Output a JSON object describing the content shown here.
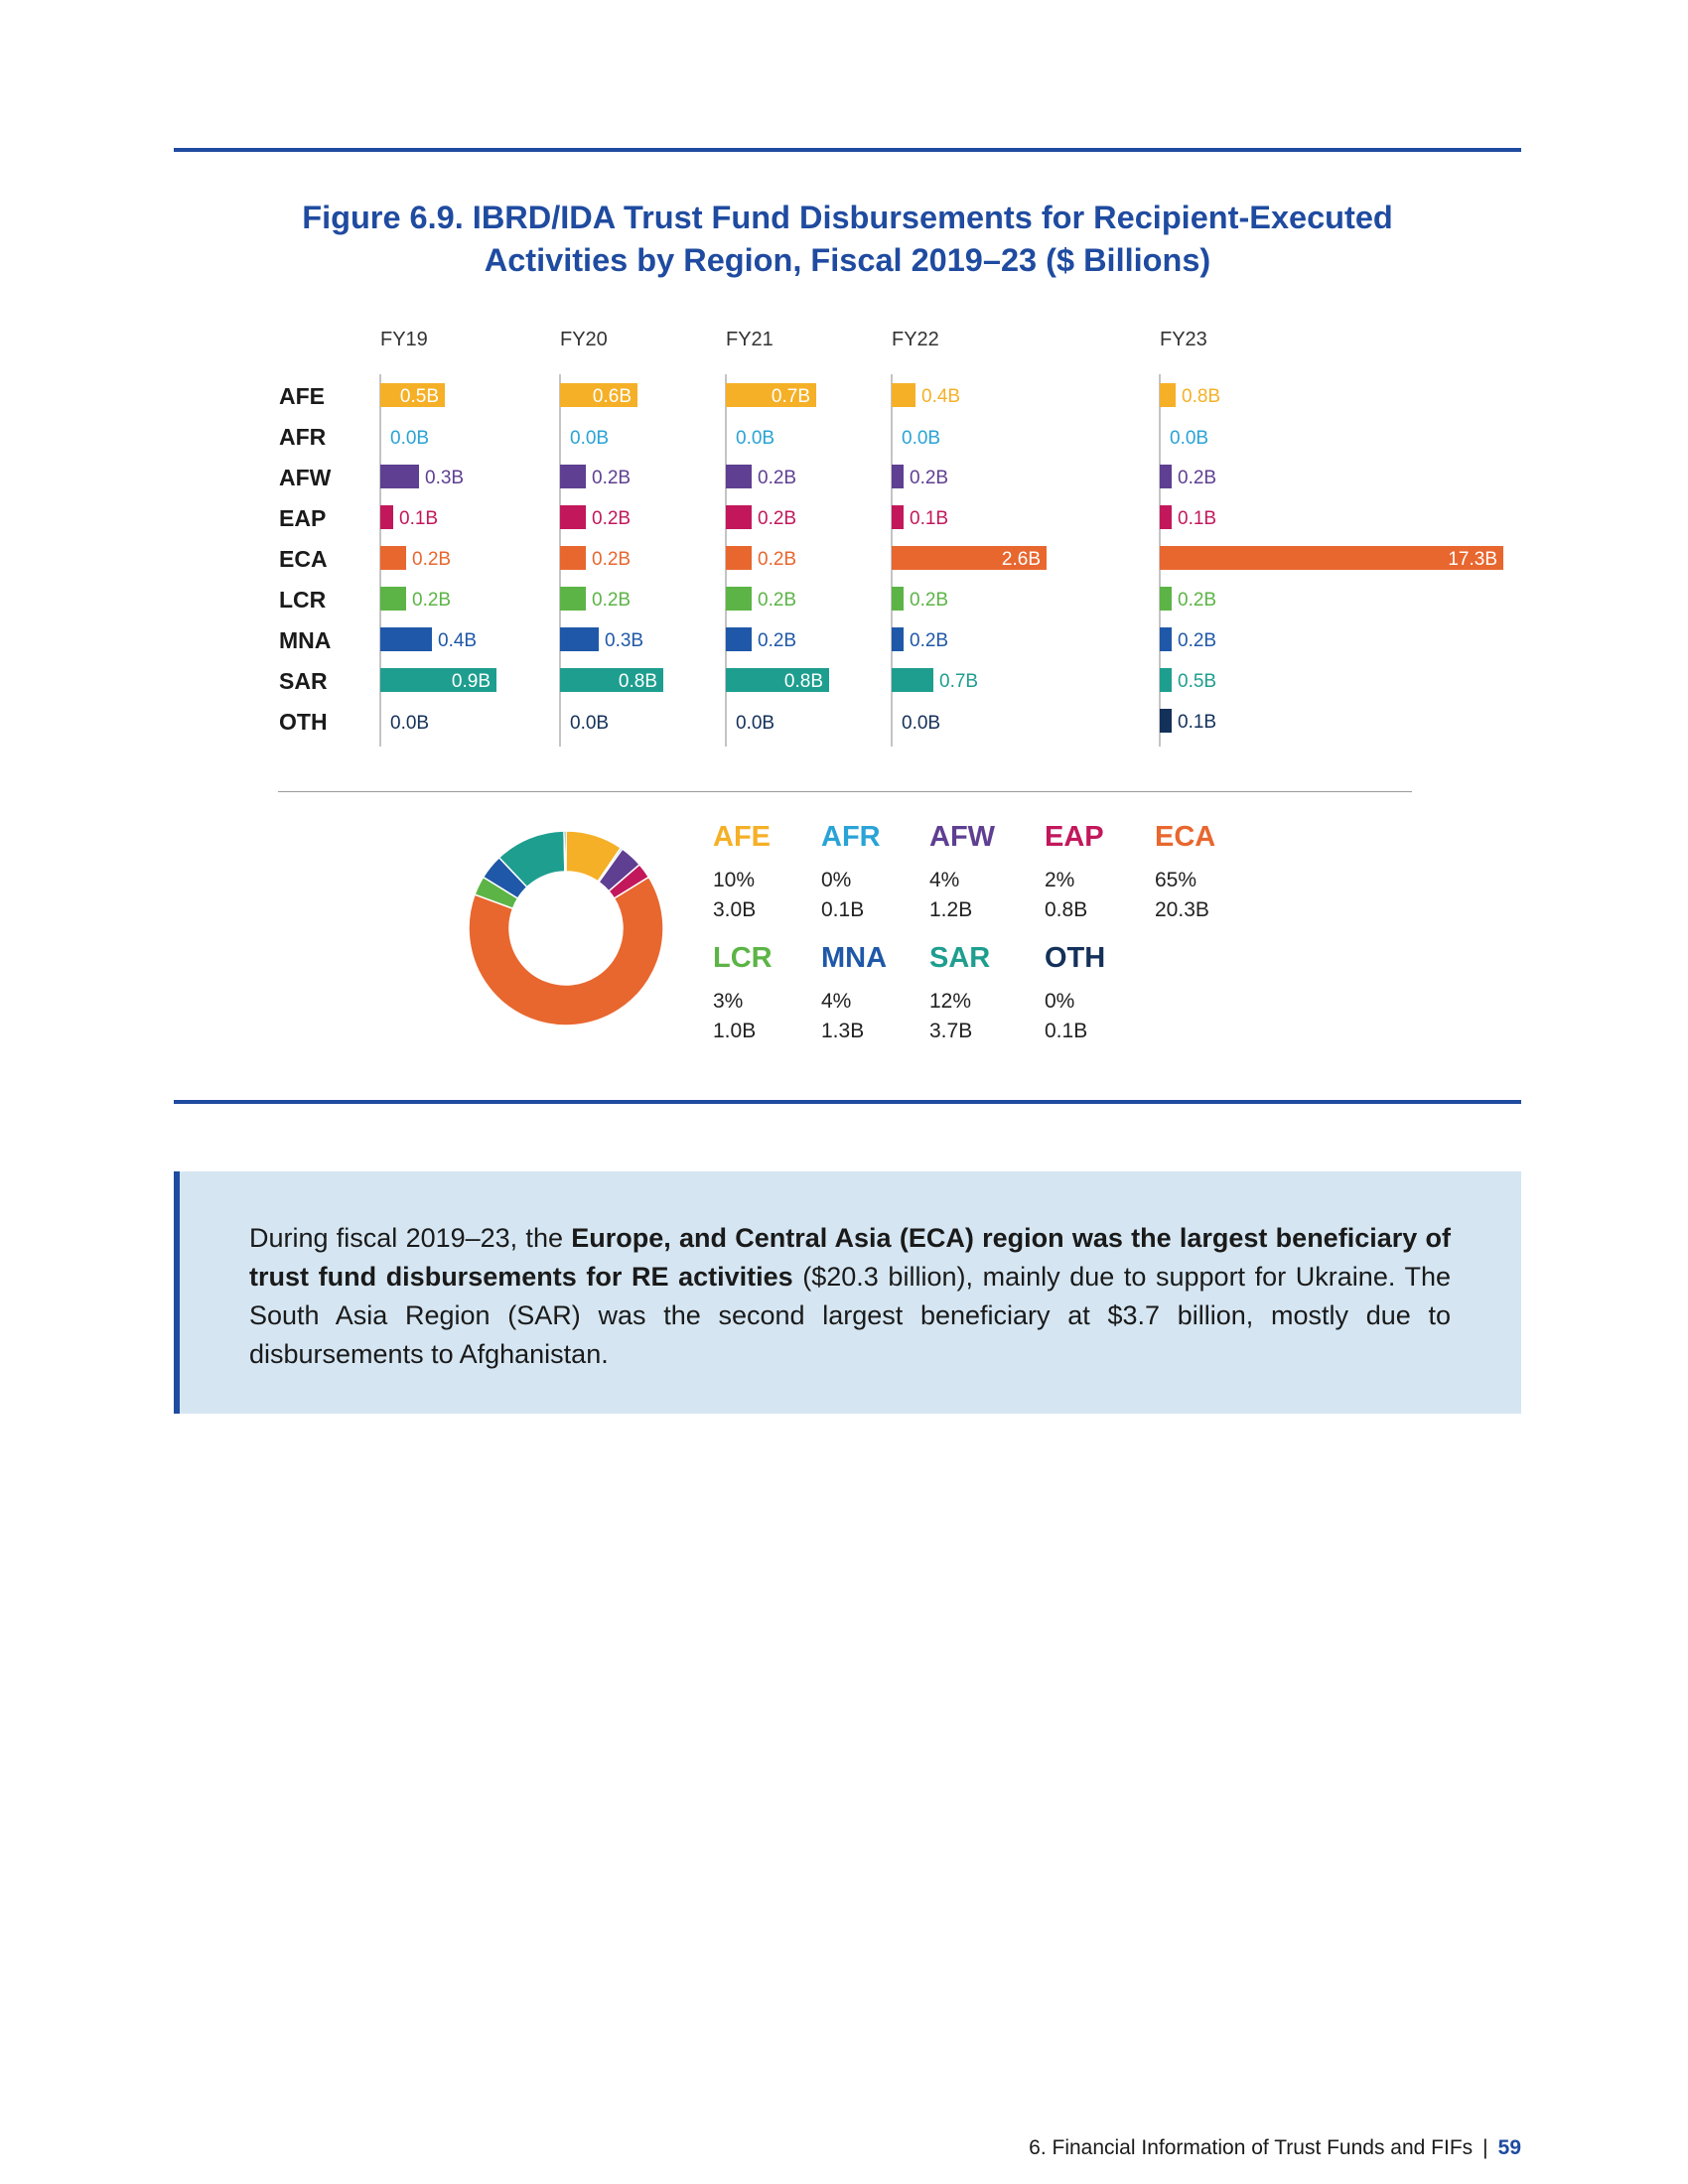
{
  "figure": {
    "title_line1": "Figure 6.9. IBRD/IDA Trust Fund Disbursements for Recipient-Executed",
    "title_line2": "Activities by Region, Fiscal 2019–23 ($ Billions)"
  },
  "chart_data": [
    {
      "type": "bar",
      "orientation": "horizontal",
      "panels": [
        "FY19",
        "FY20",
        "FY21",
        "FY22",
        "FY23"
      ],
      "categories": [
        "AFE",
        "AFR",
        "AFW",
        "EAP",
        "ECA",
        "LCR",
        "MNA",
        "SAR",
        "OTH"
      ],
      "colors": [
        "#f5b027",
        "#2aa3d6",
        "#5e3f92",
        "#c2185b",
        "#e8672f",
        "#5cb446",
        "#1f58a8",
        "#1e9e8f",
        "#14315a"
      ],
      "values": [
        [
          0.5,
          0.0,
          0.3,
          0.1,
          0.2,
          0.2,
          0.4,
          0.9,
          0.0
        ],
        [
          0.6,
          0.0,
          0.2,
          0.2,
          0.2,
          0.2,
          0.3,
          0.8,
          0.0
        ],
        [
          0.7,
          0.0,
          0.2,
          0.2,
          0.2,
          0.2,
          0.2,
          0.8,
          0.0
        ],
        [
          0.4,
          0.0,
          0.2,
          0.1,
          2.6,
          0.2,
          0.2,
          0.7,
          0.0
        ],
        [
          0.8,
          0.0,
          0.2,
          0.1,
          17.3,
          0.2,
          0.2,
          0.5,
          0.1
        ]
      ],
      "labels": [
        [
          "0.5B",
          "0.0B",
          "0.3B",
          "0.1B",
          "0.2B",
          "0.2B",
          "0.4B",
          "0.9B",
          "0.0B"
        ],
        [
          "0.6B",
          "0.0B",
          "0.2B",
          "0.2B",
          "0.2B",
          "0.2B",
          "0.3B",
          "0.8B",
          "0.0B"
        ],
        [
          "0.7B",
          "0.0B",
          "0.2B",
          "0.2B",
          "0.2B",
          "0.2B",
          "0.2B",
          "0.8B",
          "0.0B"
        ],
        [
          "0.4B",
          "0.0B",
          "0.2B",
          "0.1B",
          "2.6B",
          "0.2B",
          "0.2B",
          "0.7B",
          "0.0B"
        ],
        [
          "0.8B",
          "0.0B",
          "0.2B",
          "0.1B",
          "17.3B",
          "0.2B",
          "0.2B",
          "0.5B",
          "0.1B"
        ]
      ],
      "units": "$ Billions"
    },
    {
      "type": "pie",
      "style": "donut",
      "categories": [
        "AFE",
        "AFR",
        "AFW",
        "EAP",
        "ECA",
        "LCR",
        "MNA",
        "SAR",
        "OTH"
      ],
      "percent_labels": [
        "10%",
        "0%",
        "4%",
        "2%",
        "65%",
        "3%",
        "4%",
        "12%",
        "0%"
      ],
      "value_labels": [
        "3.0B",
        "0.1B",
        "1.2B",
        "0.8B",
        "20.3B",
        "1.0B",
        "1.3B",
        "3.7B",
        "0.1B"
      ],
      "values": [
        3.0,
        0.1,
        1.2,
        0.8,
        20.3,
        1.0,
        1.3,
        3.7,
        0.1
      ],
      "colors": [
        "#f5b027",
        "#2aa3d6",
        "#5e3f92",
        "#c2185b",
        "#e8672f",
        "#5cb446",
        "#1f58a8",
        "#1e9e8f",
        "#14315a"
      ]
    }
  ],
  "callout": {
    "part1": "During fiscal 2019–23, the ",
    "bold": "Europe, and Central Asia (ECA) region was the largest beneficiary of trust fund disbursements for RE activities",
    "part2": " ($20.3 billion), mainly due to support for Ukraine. The South Asia Region (SAR) was the second largest beneficiary at $3.7 billion, mostly due to disbursements to Afghanistan."
  },
  "footer": {
    "section": "6. Financial Information of Trust Funds and FIFs",
    "separator": "|",
    "page": "59"
  }
}
